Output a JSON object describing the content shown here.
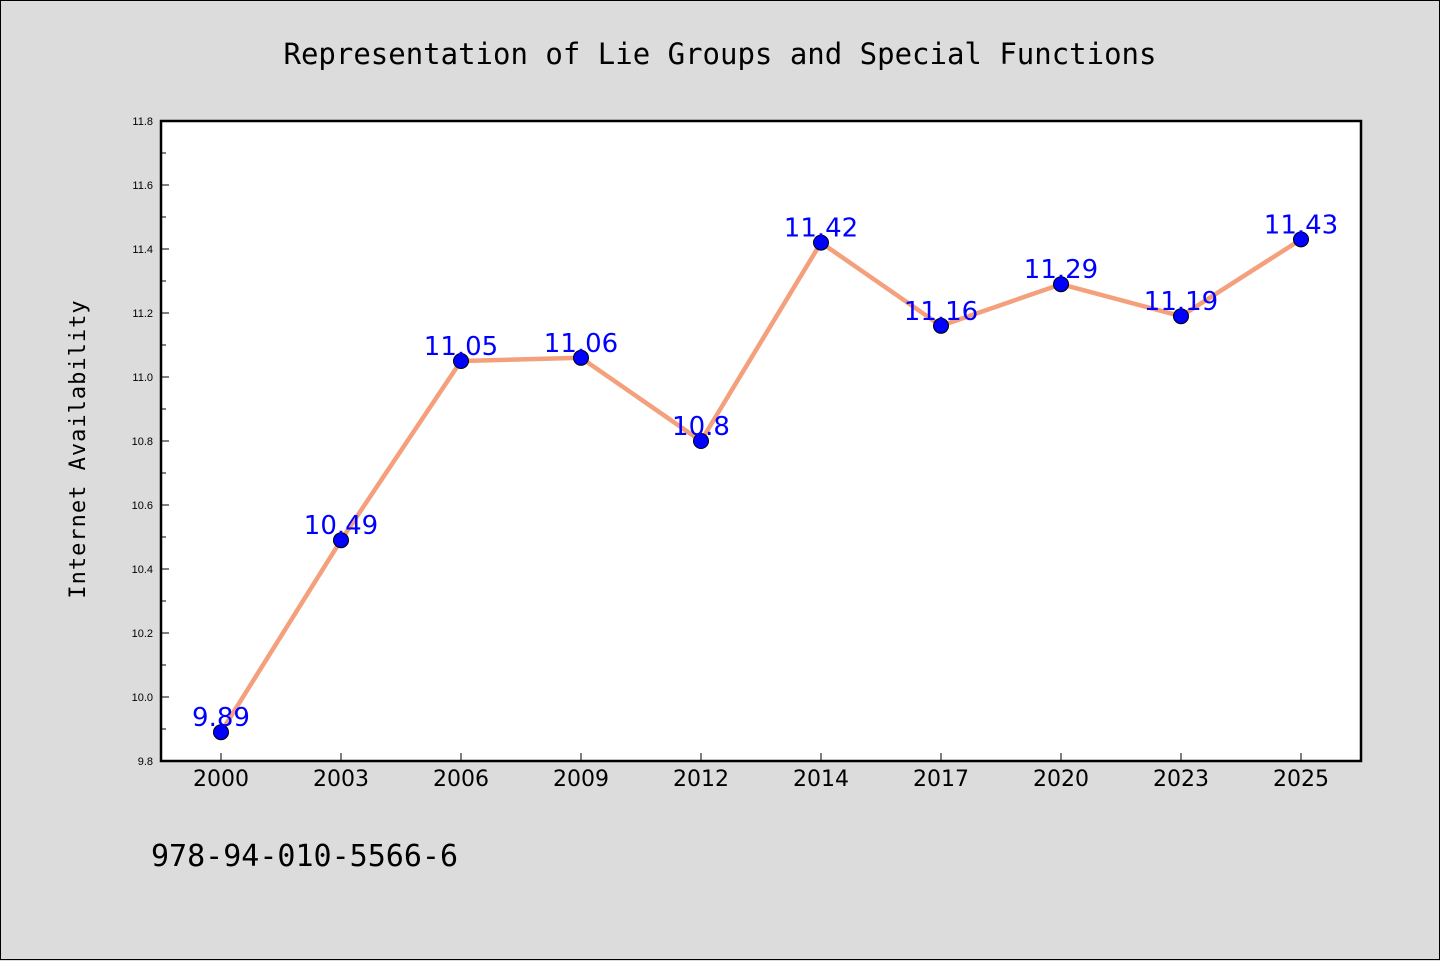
{
  "chart_data": {
    "type": "line",
    "title": "Representation of Lie Groups and Special Functions",
    "xlabel": "",
    "ylabel": "Internet Availability",
    "categories": [
      "2000",
      "2003",
      "2006",
      "2009",
      "2012",
      "2014",
      "2017",
      "2020",
      "2023",
      "2025"
    ],
    "series": [
      {
        "values": [
          9.89,
          10.49,
          11.05,
          11.06,
          10.8,
          11.42,
          11.16,
          11.29,
          11.19,
          11.43
        ],
        "data_labels": [
          "9.89",
          "10.49",
          "11.05",
          "11.06",
          "10.8",
          "11.42",
          "11.16",
          "11.29",
          "11.19",
          "11.43"
        ],
        "line_color": "#f4a07c",
        "marker_color": "#0000ff"
      }
    ],
    "ylim": [
      9.8,
      11.8
    ],
    "yticks": [
      "9.8",
      "10.0",
      "10.2",
      "10.4",
      "10.6",
      "10.8",
      "11.0",
      "11.2",
      "11.4",
      "11.6",
      "11.8"
    ],
    "grid": false,
    "legend": "none"
  },
  "footer_text": "978-94-010-5566-6"
}
